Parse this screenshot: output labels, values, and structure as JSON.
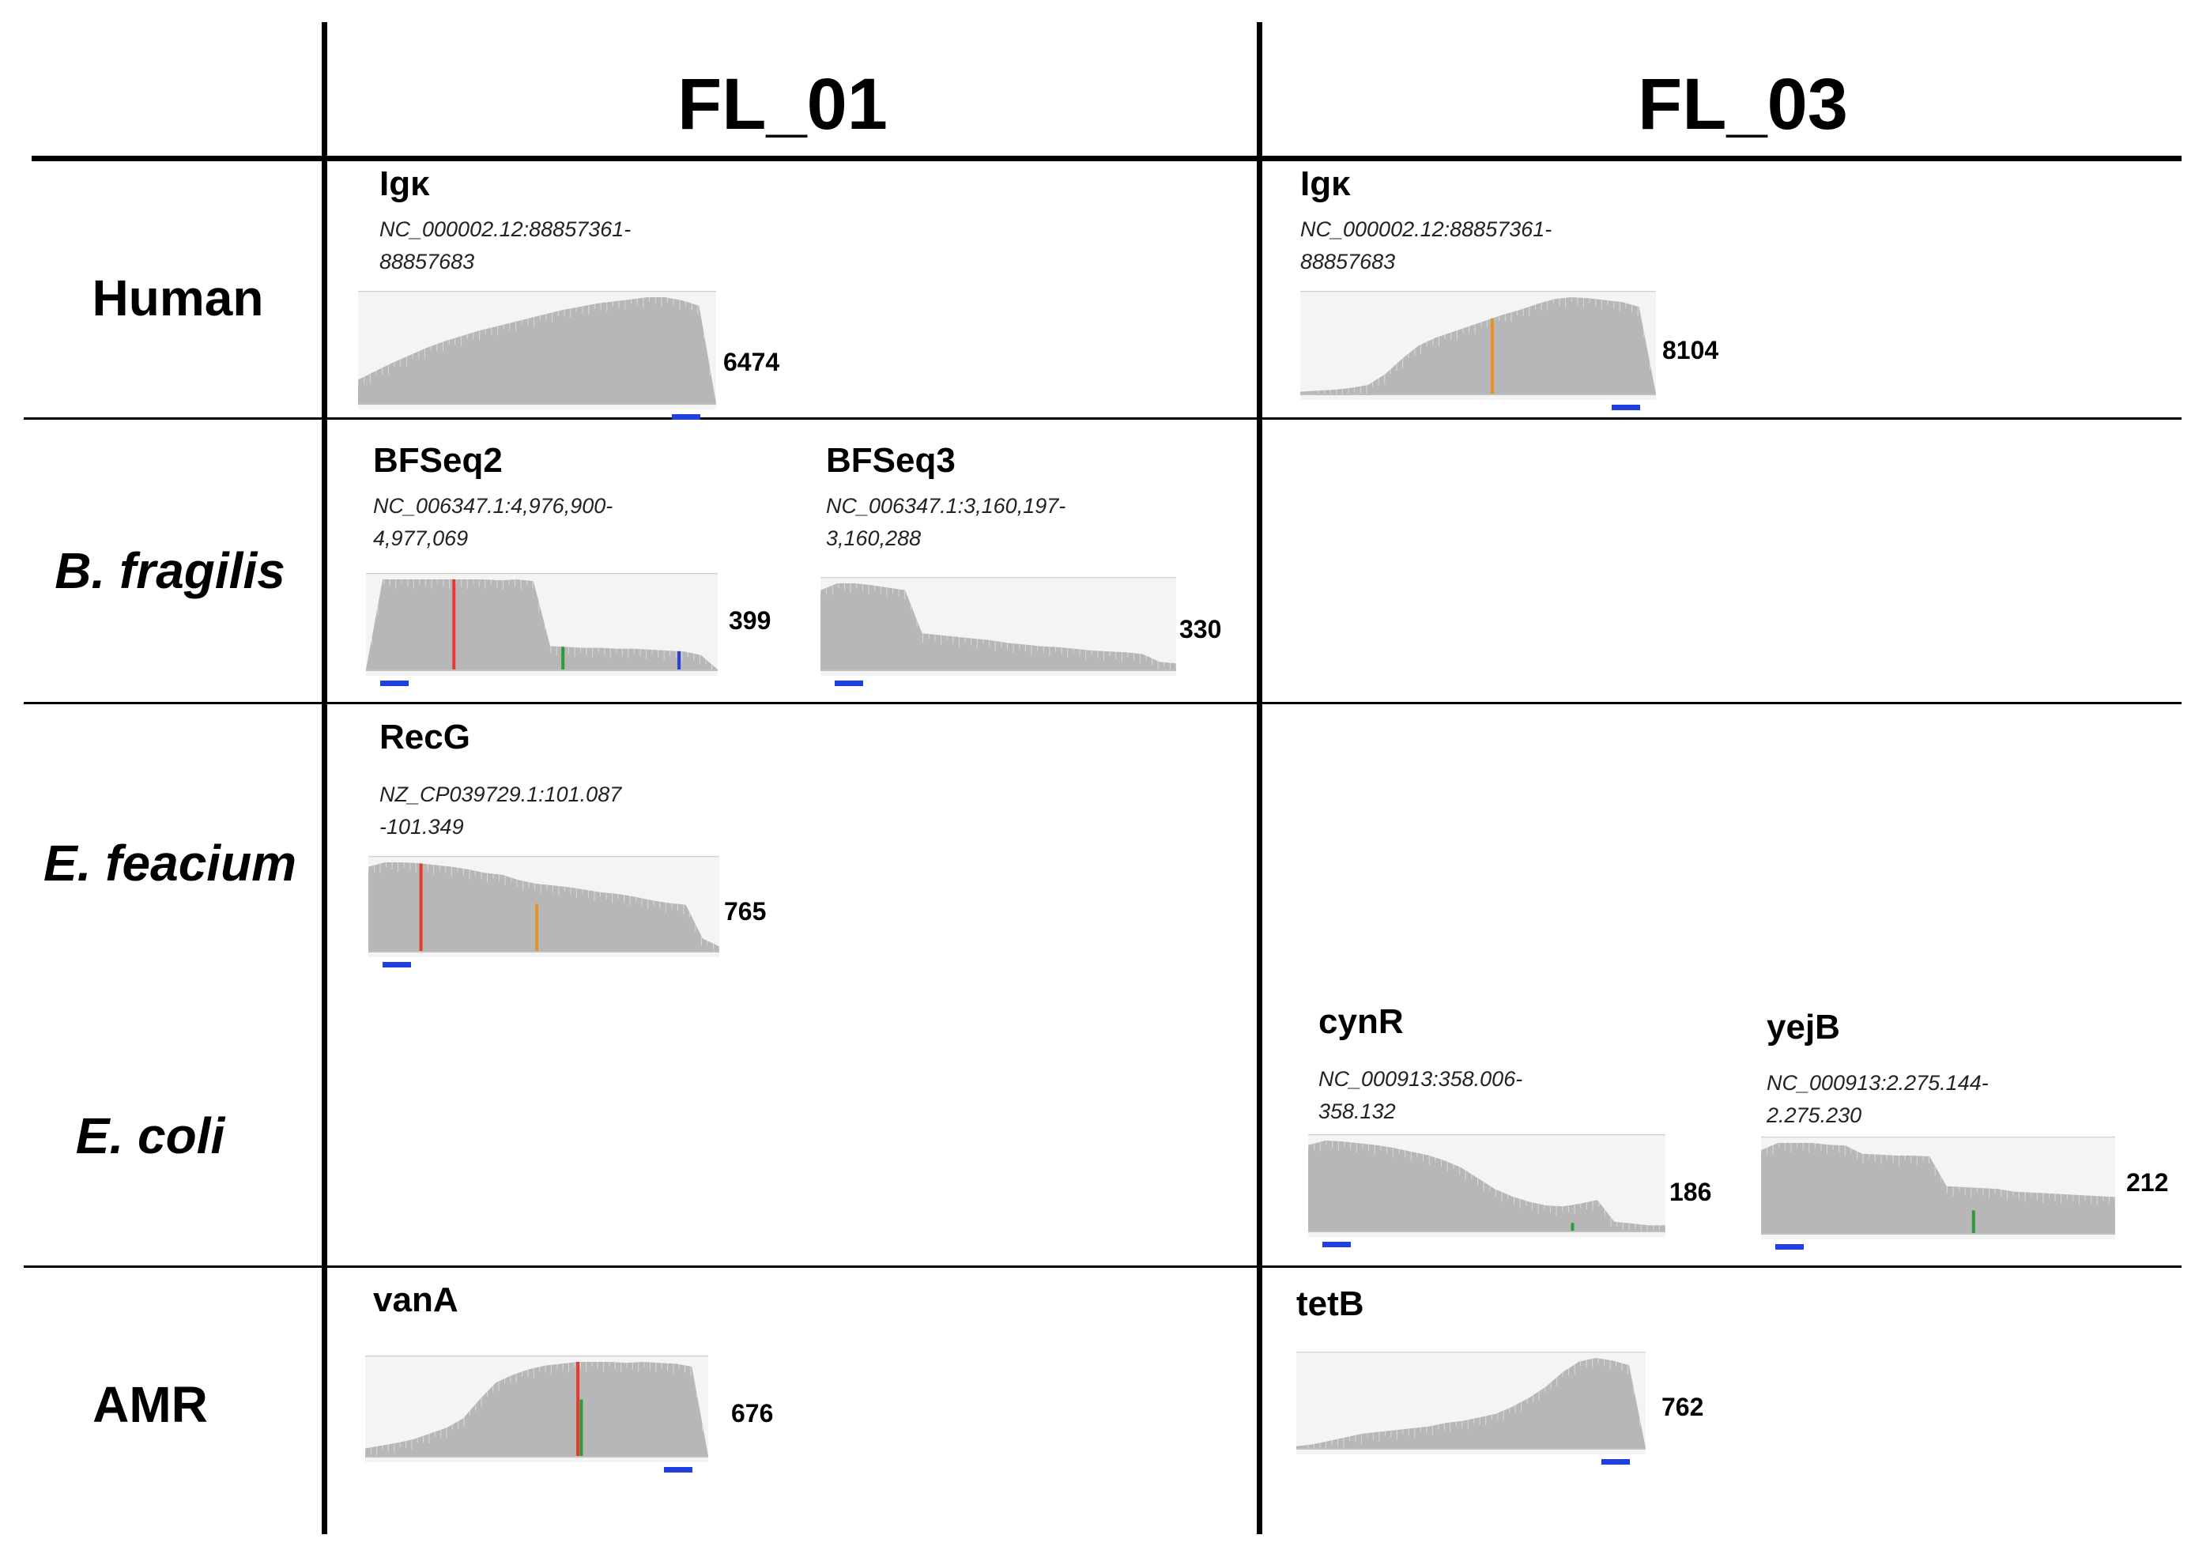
{
  "columns": [
    "FL_01",
    "FL_03"
  ],
  "rows": [
    {
      "label": "Human",
      "italic": false
    },
    {
      "label": "B. fragilis",
      "italic": true
    },
    {
      "label": "E. feacium",
      "italic": true
    },
    {
      "label": "E. coli",
      "italic": true
    },
    {
      "label": "AMR",
      "italic": false
    }
  ],
  "colors": {
    "coverage": "#b7b7b7",
    "background": "#f4f4f4",
    "scale_bar": "#1f3fe0",
    "red": "#e8392e",
    "blue": "#2a3fd6",
    "orange": "#e8912a",
    "green": "#2e9a3a"
  },
  "chart_data": [
    {
      "type": "area",
      "gene": "Igκ",
      "region_line1": "NC_000002.12:88857361-",
      "region_line2": "88857683",
      "max_depth": "6474",
      "profile": [
        0.22,
        0.3,
        0.38,
        0.45,
        0.52,
        0.58,
        0.63,
        0.68,
        0.72,
        0.76,
        0.8,
        0.84,
        0.88,
        0.91,
        0.94,
        0.96,
        0.98,
        1.0,
        1.0,
        0.97,
        0.92,
        0.0
      ],
      "markers": []
    },
    {
      "type": "area",
      "gene": "Igκ",
      "region_line1": "NC_000002.12:88857361-",
      "region_line2": "88857683",
      "max_depth": "8104",
      "profile": [
        0.02,
        0.03,
        0.04,
        0.06,
        0.09,
        0.2,
        0.36,
        0.5,
        0.58,
        0.64,
        0.7,
        0.76,
        0.82,
        0.87,
        0.93,
        0.98,
        1.0,
        0.99,
        0.97,
        0.95,
        0.9,
        0.0
      ],
      "markers": [
        {
          "pos": 0.54,
          "color": "#e8912a",
          "frac": 1.0
        }
      ]
    },
    {
      "type": "area",
      "gene": "BFSeq2",
      "region_line1": "NC_006347.1:4,976,900-",
      "region_line2": "4,977,069",
      "max_depth": "399",
      "profile": [
        0.0,
        1.0,
        1.0,
        1.0,
        1.0,
        1.0,
        1.0,
        1.0,
        0.99,
        1.0,
        0.98,
        0.26,
        0.25,
        0.24,
        0.24,
        0.23,
        0.23,
        0.22,
        0.21,
        0.2,
        0.16,
        0.0
      ],
      "markers": [
        {
          "pos": 0.25,
          "color": "#e8392e",
          "frac": 1.0
        },
        {
          "pos": 0.56,
          "color": "#2e9a3a",
          "frac": 1.0
        },
        {
          "pos": 0.89,
          "color": "#2a3fd6",
          "frac": 1.0
        }
      ]
    },
    {
      "type": "area",
      "gene": "BFSeq3",
      "region_line1": "NC_006347.1:3,160,197-",
      "region_line2": "3,160,288",
      "max_depth": "330",
      "profile": [
        0.92,
        1.0,
        1.0,
        0.98,
        0.95,
        0.92,
        0.42,
        0.4,
        0.38,
        0.36,
        0.34,
        0.31,
        0.29,
        0.27,
        0.26,
        0.24,
        0.22,
        0.21,
        0.2,
        0.18,
        0.09,
        0.07
      ],
      "markers": []
    },
    {
      "type": "area",
      "gene": "RecG",
      "region_line1": "NZ_CP039729.1:101.087",
      "region_line2": "-101.349",
      "max_depth": "765",
      "profile": [
        0.95,
        1.0,
        1.0,
        0.99,
        0.97,
        0.95,
        0.92,
        0.88,
        0.86,
        0.8,
        0.76,
        0.74,
        0.72,
        0.69,
        0.66,
        0.64,
        0.61,
        0.57,
        0.54,
        0.52,
        0.14,
        0.05
      ],
      "markers": [
        {
          "pos": 0.15,
          "color": "#e8392e",
          "frac": 1.0
        },
        {
          "pos": 0.48,
          "color": "#e8912a",
          "frac": 0.7
        }
      ]
    },
    {
      "type": "area",
      "gene": "cynR",
      "region_line1": "NC_000913:358.006-",
      "region_line2": "358.132",
      "max_depth": "186",
      "profile": [
        0.95,
        1.0,
        0.99,
        0.97,
        0.95,
        0.92,
        0.88,
        0.84,
        0.78,
        0.7,
        0.58,
        0.46,
        0.38,
        0.32,
        0.28,
        0.27,
        0.3,
        0.34,
        0.1,
        0.08,
        0.06,
        0.06
      ],
      "markers": [
        {
          "pos": 0.74,
          "color": "#2e9a3a",
          "frac": 0.3
        }
      ]
    },
    {
      "type": "area",
      "gene": "yejB",
      "region_line1": "NC_000913:2.275.144-",
      "region_line2": "2.275.230",
      "max_depth": "212",
      "profile": [
        0.92,
        1.0,
        1.0,
        1.0,
        0.98,
        0.97,
        0.88,
        0.87,
        0.86,
        0.86,
        0.85,
        0.52,
        0.51,
        0.5,
        0.49,
        0.46,
        0.45,
        0.44,
        0.43,
        0.42,
        0.41,
        0.4
      ],
      "markers": [
        {
          "pos": 0.6,
          "color": "#2e9a3a",
          "frac": 0.5
        }
      ]
    },
    {
      "type": "area",
      "gene": "vanA",
      "region_line1": "",
      "region_line2": "",
      "max_depth": "676",
      "profile": [
        0.08,
        0.11,
        0.14,
        0.18,
        0.24,
        0.3,
        0.4,
        0.6,
        0.78,
        0.86,
        0.92,
        0.96,
        0.98,
        1.0,
        1.0,
        1.0,
        0.99,
        1.0,
        0.99,
        0.98,
        0.95,
        0.0
      ],
      "markers": [
        {
          "pos": 0.62,
          "color": "#e8392e",
          "frac": 1.0
        },
        {
          "pos": 0.63,
          "color": "#2e9a3a",
          "frac": 0.6
        }
      ]
    },
    {
      "type": "area",
      "gene": "tetB",
      "region_line1": "",
      "region_line2": "",
      "max_depth": "762",
      "profile": [
        0.02,
        0.04,
        0.08,
        0.12,
        0.16,
        0.18,
        0.2,
        0.22,
        0.24,
        0.28,
        0.3,
        0.34,
        0.38,
        0.46,
        0.56,
        0.68,
        0.84,
        0.96,
        1.0,
        0.97,
        0.92,
        0.0
      ],
      "markers": []
    }
  ]
}
